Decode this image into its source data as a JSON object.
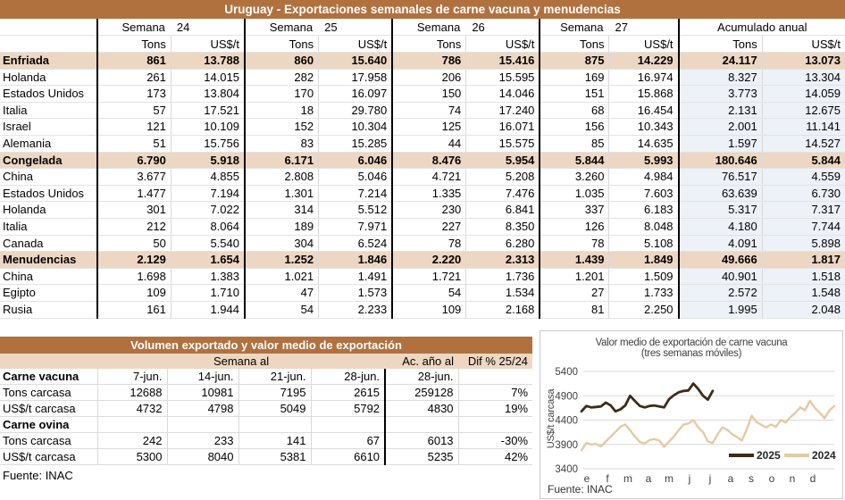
{
  "main_table": {
    "title": "Uruguay - Exportaciones semanales de carne vacuna y menudencias",
    "week_headers": [
      {
        "label": "Semana",
        "number": "24"
      },
      {
        "label": "Semana",
        "number": "25"
      },
      {
        "label": "Semana",
        "number": "26"
      },
      {
        "label": "Semana",
        "number": "27"
      }
    ],
    "acumulado_label": "Acumulado anual",
    "subheaders": [
      "Tons",
      "US$/t"
    ],
    "rows": [
      {
        "label": "Enfriada",
        "type": "section",
        "values": [
          "861",
          "13.788",
          "860",
          "15.640",
          "786",
          "15.416",
          "875",
          "14.229",
          "24.117",
          "13.073"
        ]
      },
      {
        "label": "Holanda",
        "type": "data",
        "values": [
          "261",
          "14.015",
          "282",
          "17.958",
          "206",
          "15.595",
          "169",
          "16.974",
          "8.327",
          "13.304"
        ]
      },
      {
        "label": "Estados Unidos",
        "type": "data",
        "values": [
          "173",
          "13.804",
          "170",
          "16.097",
          "150",
          "14.046",
          "151",
          "15.868",
          "3.773",
          "14.059"
        ]
      },
      {
        "label": "Italia",
        "type": "data",
        "values": [
          "57",
          "17.521",
          "18",
          "29.780",
          "74",
          "17.240",
          "68",
          "16.454",
          "2.131",
          "12.675"
        ]
      },
      {
        "label": "Israel",
        "type": "data",
        "values": [
          "121",
          "10.109",
          "152",
          "10.304",
          "125",
          "16.071",
          "156",
          "10.343",
          "2.001",
          "11.141"
        ]
      },
      {
        "label": "Alemania",
        "type": "data",
        "values": [
          "51",
          "15.756",
          "83",
          "15.285",
          "44",
          "15.575",
          "85",
          "14.635",
          "1.597",
          "14.527"
        ]
      },
      {
        "label": "Congelada",
        "type": "section",
        "values": [
          "6.790",
          "5.918",
          "6.171",
          "6.046",
          "8.476",
          "5.954",
          "5.844",
          "5.993",
          "180.646",
          "5.844"
        ]
      },
      {
        "label": "China",
        "type": "data",
        "values": [
          "3.677",
          "4.855",
          "2.808",
          "5.046",
          "4.721",
          "5.208",
          "3.260",
          "4.984",
          "76.517",
          "4.559"
        ]
      },
      {
        "label": "Estados Unidos",
        "type": "data",
        "values": [
          "1.477",
          "7.194",
          "1.301",
          "7.214",
          "1.335",
          "7.476",
          "1.035",
          "7.603",
          "63.639",
          "6.730"
        ]
      },
      {
        "label": "Holanda",
        "type": "data",
        "values": [
          "301",
          "7.022",
          "314",
          "5.512",
          "230",
          "6.841",
          "337",
          "6.183",
          "5.317",
          "7.317"
        ]
      },
      {
        "label": "Italia",
        "type": "data",
        "values": [
          "212",
          "8.064",
          "189",
          "7.971",
          "227",
          "8.350",
          "126",
          "8.048",
          "4.180",
          "7.744"
        ]
      },
      {
        "label": "Canada",
        "type": "data",
        "values": [
          "50",
          "5.540",
          "304",
          "6.524",
          "78",
          "6.280",
          "78",
          "5.108",
          "4.091",
          "5.898"
        ]
      },
      {
        "label": "Menudencias",
        "type": "section",
        "values": [
          "2.129",
          "1.654",
          "1.252",
          "1.846",
          "2.220",
          "2.313",
          "1.439",
          "1.849",
          "49.666",
          "1.817"
        ]
      },
      {
        "label": "China",
        "type": "data",
        "values": [
          "1.698",
          "1.383",
          "1.021",
          "1.491",
          "1.721",
          "1.736",
          "1.201",
          "1.509",
          "40.901",
          "1.518"
        ]
      },
      {
        "label": "Egipto",
        "type": "data",
        "values": [
          "109",
          "1.710",
          "47",
          "1.573",
          "54",
          "1.534",
          "27",
          "1.733",
          "2.572",
          "1.548"
        ]
      },
      {
        "label": "Rusia",
        "type": "data",
        "values": [
          "161",
          "1.944",
          "54",
          "2.233",
          "109",
          "2.168",
          "81",
          "2.250",
          "1.995",
          "2.048"
        ]
      }
    ]
  },
  "volume_table": {
    "title": "Volumen exportado y valor medio de exportación",
    "header": {
      "semana_al": "Semana al",
      "ac": "Ac. año al",
      "dif": "Dif % 25/24"
    },
    "rows": [
      {
        "label": "Carne vacuna",
        "type": "section",
        "values": [
          "7-jun.",
          "14-jun.",
          "21-jun.",
          "28-jun.",
          "28-jun.",
          ""
        ]
      },
      {
        "label": "Tons carcasa",
        "type": "data",
        "values": [
          "12688",
          "10981",
          "7195",
          "2615",
          "259128",
          "7%"
        ]
      },
      {
        "label": "US$/t carcasa",
        "type": "data",
        "values": [
          "4732",
          "4798",
          "5049",
          "5792",
          "4830",
          "19%"
        ]
      },
      {
        "label": "Carne ovina",
        "type": "section",
        "values": [
          "",
          "",
          "",
          "",
          "",
          ""
        ]
      },
      {
        "label": "Tons carcasa",
        "type": "data",
        "values": [
          "242",
          "233",
          "141",
          "67",
          "6013",
          "-30%"
        ]
      },
      {
        "label": "US$/t carcasa",
        "type": "data",
        "values": [
          "5300",
          "8040",
          "5381",
          "6610",
          "5235",
          "42%"
        ]
      }
    ],
    "source": "Fuente: INAC"
  },
  "chart_data": {
    "type": "line",
    "title": "Valor medio de exportación de carne vacuna",
    "subtitle": "(tres semanas móviles)",
    "ylabel": "US$/t carcasa",
    "ylim": [
      3400,
      5400
    ],
    "yticks": [
      5400,
      4900,
      4400,
      3900,
      3400
    ],
    "x_months": [
      "e",
      "f",
      "m",
      "a",
      "m",
      "j",
      "j",
      "a",
      "s",
      "o",
      "n",
      "d"
    ],
    "weeks_per_year": 52,
    "grid": true,
    "legend_position": "inside-bottom-right",
    "series": [
      {
        "name": "2025",
        "color": "#3f2b16",
        "width": 2.8,
        "values": [
          4580,
          4690,
          4660,
          4670,
          4680,
          4760,
          4700,
          4580,
          4620,
          4700,
          4900,
          4790,
          4690,
          4660,
          4690,
          4700,
          4680,
          4660,
          4830,
          4910,
          4970,
          5000,
          5010,
          5150,
          5040,
          4900,
          4820,
          5000
        ]
      },
      {
        "name": "2024",
        "color": "#e6c9a2",
        "width": 2.4,
        "values": [
          3780,
          3930,
          3900,
          3910,
          3860,
          3960,
          4060,
          4160,
          4260,
          4310,
          4190,
          4060,
          3950,
          3920,
          3990,
          4010,
          3980,
          3850,
          3960,
          4060,
          4190,
          4310,
          4330,
          4400,
          4250,
          4150,
          3960,
          3930,
          4110,
          4250,
          4200,
          4110,
          4050,
          3980,
          4210,
          4490,
          4360,
          4300,
          4250,
          4310,
          4260,
          4400,
          4350,
          4460,
          4550,
          4660,
          4600,
          4800,
          4650,
          4550,
          4440,
          4600,
          4690
        ]
      }
    ],
    "source": "Fuente: INAC",
    "grid_color": "#d9d9d9",
    "text_color": "#404040"
  }
}
